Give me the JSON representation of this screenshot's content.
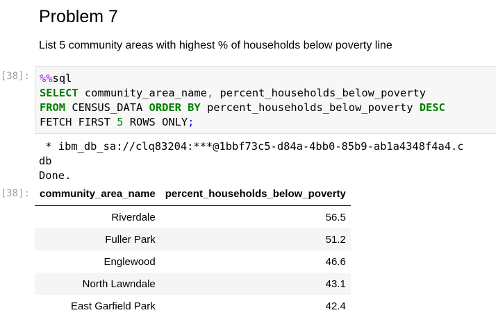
{
  "heading": "Problem 7",
  "description": "List 5 community areas with highest % of households below poverty line",
  "code_cell": {
    "prompt": "[38]:",
    "lines": [
      [
        {
          "t": "%%",
          "c": "magic"
        },
        {
          "t": "sql",
          "c": ""
        }
      ],
      [
        {
          "t": "SELECT",
          "c": "kw"
        },
        {
          "t": " community_area_name",
          "c": ""
        },
        {
          "t": ",",
          "c": "op"
        },
        {
          "t": " percent_households_below_poverty",
          "c": ""
        }
      ],
      [
        {
          "t": "FROM",
          "c": "kw"
        },
        {
          "t": " CENSUS_DATA ",
          "c": ""
        },
        {
          "t": "ORDER BY",
          "c": "kw"
        },
        {
          "t": " percent_households_below_poverty ",
          "c": ""
        },
        {
          "t": "DESC",
          "c": "kw"
        }
      ],
      [
        {
          "t": "FETCH FIRST ",
          "c": ""
        },
        {
          "t": "5",
          "c": "num"
        },
        {
          "t": " ROWS ONLY",
          "c": ""
        },
        {
          "t": ";",
          "c": "punc"
        }
      ]
    ]
  },
  "output_cell": {
    "stream_text": " * ibm_db_sa://clq83204:***@1bbf73c5-d84a-4bb0-85b9-ab1a4348f4a4.c\ndb\nDone.",
    "prompt": "[38]:",
    "table": {
      "columns": [
        "community_area_name",
        "percent_households_below_poverty"
      ],
      "rows": [
        [
          "Riverdale",
          "56.5"
        ],
        [
          "Fuller Park",
          "51.2"
        ],
        [
          "Englewood",
          "46.6"
        ],
        [
          "North Lawndale",
          "43.1"
        ],
        [
          "East Garfield Park",
          "42.4"
        ]
      ]
    }
  }
}
